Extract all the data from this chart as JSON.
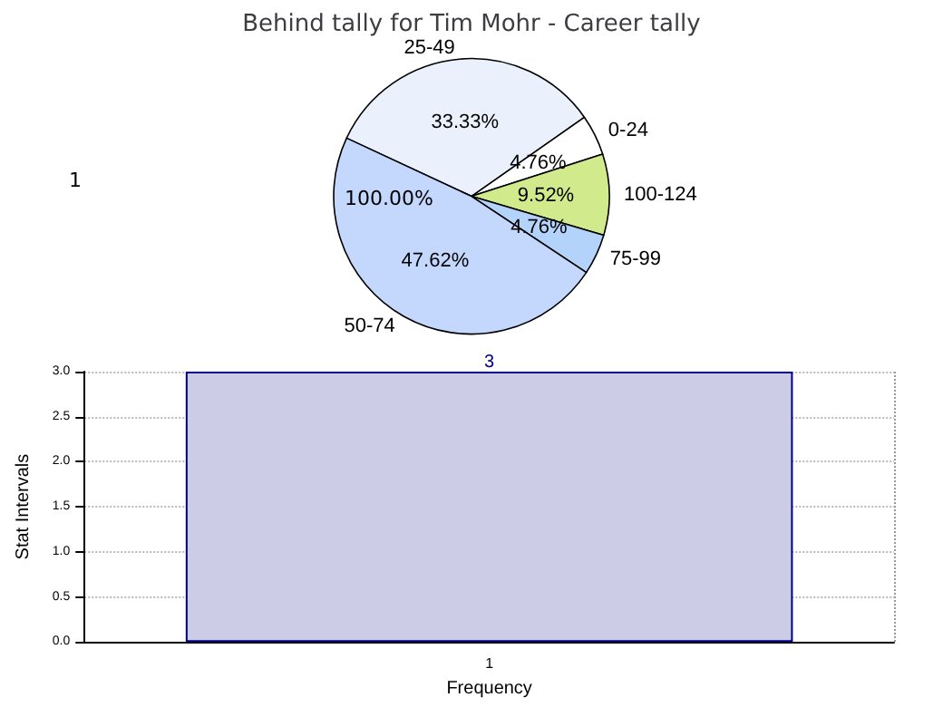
{
  "chart_data": [
    {
      "type": "pie",
      "title": "Behind tally for Tim Mohr - Career tally",
      "categories": [
        "25-49",
        "0-24",
        "100-124",
        "75-99",
        "50-74"
      ],
      "values": [
        33.33,
        4.76,
        9.52,
        4.76,
        47.62
      ],
      "colors": [
        "#eaf1fd",
        "#ffffff",
        "#d0ea8c",
        "#b3d3fb",
        "#c4d8fd"
      ],
      "value_labels": [
        "33.33%",
        "4.76%",
        "9.52%",
        "4.76%",
        "47.62%"
      ],
      "annotations": [
        "1",
        "100.00%"
      ],
      "legend": false
    },
    {
      "type": "bar",
      "categories": [
        "1"
      ],
      "values": [
        3
      ],
      "color": "#ccccE6",
      "xlabel": "Frequency",
      "ylabel": "Stat Intervals",
      "ylim": [
        0,
        3
      ],
      "yticks": [
        {
          "value": 0,
          "label": "0.0"
        },
        {
          "value": 0.5,
          "label": "0.5"
        },
        {
          "value": 1,
          "label": "1.0"
        },
        {
          "value": 1.5,
          "label": "1.5"
        },
        {
          "value": 2,
          "label": "2.0"
        },
        {
          "value": 2.5,
          "label": "2.5"
        },
        {
          "value": 3,
          "label": "3.0"
        }
      ],
      "grid": true,
      "data_labels": true,
      "legend": false
    }
  ]
}
